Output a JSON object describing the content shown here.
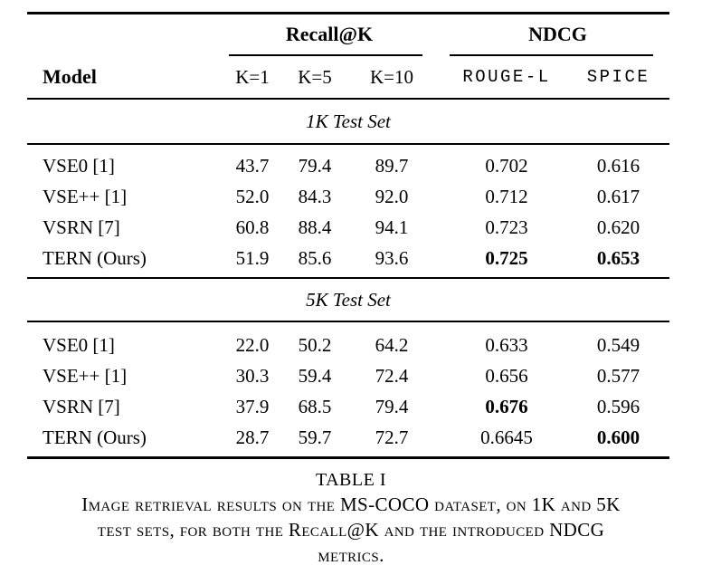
{
  "colors": {
    "text": "#000000",
    "background": "#ffffff",
    "rule": "#000000"
  },
  "table": {
    "groups": [
      {
        "label": "Recall@K"
      },
      {
        "label": "NDCG"
      }
    ],
    "columns": [
      "Model",
      "K=1",
      "K=5",
      "K=10",
      "ROUGE-L",
      "SPICE"
    ],
    "sections": [
      {
        "title": "1K Test Set",
        "rows": [
          {
            "model": "VSE0 [1]",
            "cells": [
              "43.7",
              "79.4",
              "89.7",
              "0.702",
              "0.616"
            ]
          },
          {
            "model": "VSE++ [1]",
            "cells": [
              "52.0",
              "84.3",
              "92.0",
              "0.712",
              "0.617"
            ]
          },
          {
            "model": "VSRN [7]",
            "cells": [
              "60.8",
              "88.4",
              "94.1",
              "0.723",
              "0.620"
            ]
          },
          {
            "model": "TERN (Ours)",
            "cells": [
              "51.9",
              "85.6",
              "93.6",
              "0.725",
              "0.653"
            ]
          }
        ]
      },
      {
        "title": "5K Test Set",
        "rows": [
          {
            "model": "VSE0 [1]",
            "cells": [
              "22.0",
              "50.2",
              "64.2",
              "0.633",
              "0.549"
            ]
          },
          {
            "model": "VSE++ [1]",
            "cells": [
              "30.3",
              "59.4",
              "72.4",
              "0.656",
              "0.577"
            ]
          },
          {
            "model": "VSRN [7]",
            "cells": [
              "37.9",
              "68.5",
              "79.4",
              "0.676",
              "0.596"
            ]
          },
          {
            "model": "TERN (Ours)",
            "cells": [
              "28.7",
              "59.7",
              "72.7",
              "0.6645",
              "0.600"
            ]
          }
        ]
      }
    ]
  },
  "caption": {
    "label": "TABLE I",
    "lines": [
      "Image retrieval results on the MS-COCO dataset, on 1K and 5K",
      "test sets, for both the Recall@K and the introduced NDCG",
      "metrics."
    ]
  }
}
